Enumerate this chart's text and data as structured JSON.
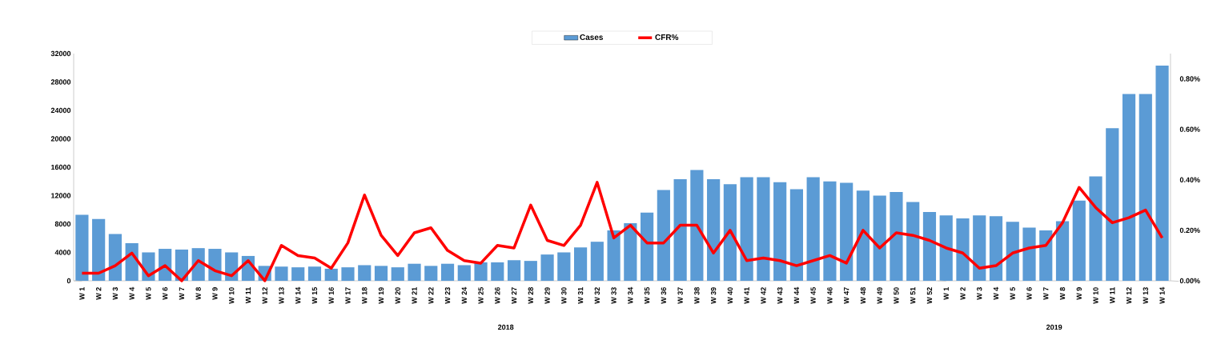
{
  "chart_data": {
    "type": "bar",
    "categories": [
      "W 1",
      "W 2",
      "W 3",
      "W 4",
      "W 5",
      "W 6",
      "W 7",
      "W 8",
      "W 9",
      "W 10",
      "W 11",
      "W 12",
      "W 13",
      "W 14",
      "W 15",
      "W 16",
      "W 17",
      "W 18",
      "W 19",
      "W 20",
      "W 21",
      "W 22",
      "W 23",
      "W 24",
      "W 25",
      "W 26",
      "W 27",
      "W 28",
      "W 29",
      "W 30",
      "W 31",
      "W 32",
      "W 33",
      "W 34",
      "W 35",
      "W 36",
      "W 37",
      "W 38",
      "W 39",
      "W 40",
      "W 41",
      "W 42",
      "W 43",
      "W 44",
      "W 45",
      "W 46",
      "W 47",
      "W 48",
      "W 49",
      "W 50",
      "W 51",
      "W 52",
      "W 1",
      "W 2",
      "W 3",
      "W 4",
      "W 5",
      "W 6",
      "W 7",
      "W 8",
      "W 9",
      "W 10",
      "W 11",
      "W 12",
      "W 13",
      "W 14"
    ],
    "series": [
      {
        "name": "Cases",
        "color": "#5b9bd5",
        "values": [
          9300,
          8700,
          6600,
          5300,
          4000,
          4500,
          4400,
          4600,
          4500,
          4000,
          3500,
          2100,
          2000,
          1900,
          2000,
          1700,
          1900,
          2200,
          2100,
          1900,
          2400,
          2100,
          2400,
          2200,
          2600,
          2600,
          2900,
          2800,
          3700,
          4000,
          4700,
          5500,
          7100,
          8100,
          9600,
          12800,
          14300,
          15600,
          14300,
          13600,
          14600,
          14600,
          13900,
          12900,
          14600,
          14000,
          13800,
          12700,
          12000,
          12500,
          11100,
          9700,
          9200,
          8800,
          9200,
          9100,
          8300,
          7500,
          7100,
          8400,
          11300,
          14700,
          21500,
          26300,
          26300,
          30300
        ]
      },
      {
        "name": "CFR%",
        "type": "line",
        "axis": "y2",
        "color": "#ff0000",
        "line_style": "solid",
        "values": [
          0.03,
          0.03,
          0.06,
          0.11,
          0.02,
          0.06,
          0.0,
          0.08,
          0.04,
          0.02,
          0.08,
          0.0,
          0.14,
          0.1,
          0.09,
          0.05,
          0.15,
          0.34,
          0.18,
          0.1,
          0.19,
          0.21,
          0.12,
          0.08,
          0.07,
          0.14,
          0.13,
          0.3,
          0.16,
          0.14,
          0.22,
          0.39,
          0.17,
          0.22,
          0.15,
          0.15,
          0.22,
          0.22,
          0.11,
          0.2,
          0.08,
          0.09,
          0.08,
          0.06,
          0.08,
          0.1,
          0.07,
          0.2,
          0.13,
          0.19,
          0.18,
          0.16,
          0.13,
          0.11,
          0.05,
          0.06,
          0.11,
          0.13,
          0.14,
          0.23,
          0.37,
          0.29,
          0.23,
          0.25,
          0.28,
          0.17
        ]
      }
    ],
    "ylim": [
      0,
      32000
    ],
    "yticks": [
      0,
      4000,
      8000,
      12000,
      16000,
      20000,
      24000,
      28000,
      32000
    ],
    "y2lim": [
      0,
      0.9
    ],
    "y2ticks": [
      {
        "value": 0,
        "label": "0.00%"
      },
      {
        "value": 0.2,
        "label": "0.20%"
      },
      {
        "value": 0.4,
        "label": "0.40%"
      },
      {
        "value": 0.6,
        "label": "0.60%"
      },
      {
        "value": 0.8,
        "label": "0.80%"
      }
    ],
    "annotations": [
      "2018",
      "2019"
    ],
    "legend": "top",
    "grid": false,
    "marker": "none"
  }
}
